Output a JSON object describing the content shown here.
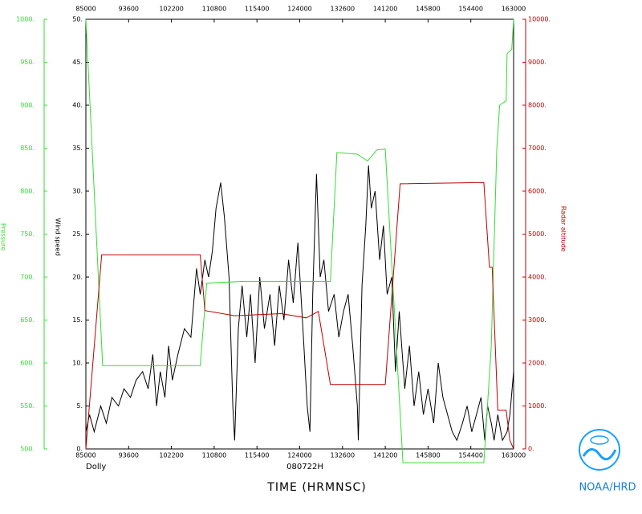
{
  "chart_data": {
    "type": "line",
    "title": "TIME (HRMNSC)",
    "storm": "Dolly",
    "flight": "080722H",
    "credit": "NOAA/HRD",
    "ylabel": "Wind speed",
    "y2label": "Radar altitude",
    "y3label": "Pressure",
    "xlim": [
      530,
      990
    ],
    "xticks": [
      {
        "value": 530,
        "label": "85000"
      },
      {
        "value": 576,
        "label": "93600"
      },
      {
        "value": 622,
        "label": "102200"
      },
      {
        "value": 668,
        "label": "110800"
      },
      {
        "value": 714,
        "label": "115400"
      },
      {
        "value": 760,
        "label": "124000"
      },
      {
        "value": 806,
        "label": "132600"
      },
      {
        "value": 852,
        "label": "141200"
      },
      {
        "value": 898,
        "label": "145800"
      },
      {
        "value": 944,
        "label": "154400"
      },
      {
        "value": 990,
        "label": "163000"
      }
    ],
    "ylim": [
      0,
      50
    ],
    "yticks": [
      {
        "value": 0,
        "label": "0."
      },
      {
        "value": 5,
        "label": "5."
      },
      {
        "value": 10,
        "label": "10."
      },
      {
        "value": 15,
        "label": "15."
      },
      {
        "value": 20,
        "label": "20."
      },
      {
        "value": 25,
        "label": "25."
      },
      {
        "value": 30,
        "label": "30."
      },
      {
        "value": 35,
        "label": "35."
      },
      {
        "value": 40,
        "label": "40."
      },
      {
        "value": 45,
        "label": "45."
      },
      {
        "value": 50,
        "label": "50."
      }
    ],
    "y2lim": [
      0,
      10000
    ],
    "y2ticks": [
      {
        "value": 0,
        "label": "0."
      },
      {
        "value": 1000,
        "label": "1000."
      },
      {
        "value": 2000,
        "label": "2000."
      },
      {
        "value": 3000,
        "label": "3000."
      },
      {
        "value": 4000,
        "label": "4000."
      },
      {
        "value": 5000,
        "label": "5000."
      },
      {
        "value": 6000,
        "label": "6000."
      },
      {
        "value": 7000,
        "label": "7000."
      },
      {
        "value": 8000,
        "label": "8000."
      },
      {
        "value": 9000,
        "label": "9000."
      },
      {
        "value": 10000,
        "label": "10000."
      }
    ],
    "y3lim": [
      500,
      1000
    ],
    "y3ticks": [
      {
        "value": 500,
        "label": "500."
      },
      {
        "value": 550,
        "label": "550."
      },
      {
        "value": 600,
        "label": "600."
      },
      {
        "value": 650,
        "label": "650."
      },
      {
        "value": 700,
        "label": "700."
      },
      {
        "value": 750,
        "label": "750."
      },
      {
        "value": 800,
        "label": "800."
      },
      {
        "value": 850,
        "label": "850."
      },
      {
        "value": 900,
        "label": "900."
      },
      {
        "value": 950,
        "label": "950."
      },
      {
        "value": 1000,
        "label": "1000."
      }
    ],
    "y3color": "#33dd33",
    "y2color": "#bb0000",
    "series": [
      {
        "axis": "y",
        "color": "#000000",
        "x": [
          530,
          534,
          539,
          546,
          552,
          558,
          565,
          571,
          578,
          584,
          591,
          597,
          602,
          606,
          610,
          615,
          619,
          623,
          629,
          636,
          643,
          649,
          653,
          658,
          662,
          666,
          670,
          675,
          679,
          684,
          688,
          690,
          694,
          698,
          703,
          707,
          712,
          717,
          722,
          728,
          733,
          738,
          743,
          748,
          753,
          758,
          764,
          768,
          771,
          774,
          778,
          782,
          786,
          791,
          797,
          802,
          807,
          812,
          817,
          822,
          823,
          827,
          831,
          834,
          837,
          841,
          846,
          850,
          854,
          859,
          863,
          867,
          873,
          878,
          883,
          888,
          893,
          898,
          904,
          909,
          914,
          919,
          924,
          929,
          935,
          940,
          945,
          950,
          955,
          959,
          962,
          966,
          969,
          973,
          978,
          983,
          986,
          990
        ],
        "values": [
          2,
          4,
          2,
          5,
          3,
          6,
          5,
          7,
          6,
          8,
          9,
          7,
          11,
          5,
          9,
          6,
          12,
          8,
          11,
          14,
          13,
          21,
          18,
          22,
          20,
          23,
          28,
          31,
          27,
          20,
          5,
          1,
          14,
          19,
          13,
          18,
          10,
          20,
          14,
          18,
          12,
          19,
          15,
          22,
          17,
          24,
          13,
          5,
          2,
          18,
          32,
          20,
          22,
          16,
          18,
          13,
          16,
          18,
          12,
          5,
          1,
          19,
          26,
          33,
          28,
          30,
          22,
          26,
          18,
          20,
          9,
          16,
          7,
          12,
          5,
          9,
          4,
          7,
          3,
          10,
          6,
          4,
          2,
          1,
          3,
          5,
          2,
          4,
          6,
          1,
          5,
          3,
          1,
          4,
          1,
          2,
          4,
          9
        ]
      },
      {
        "axis": "y3",
        "color": "#33dd33",
        "x": [
          530,
          548,
          653,
          660,
          700,
          793,
          800,
          822,
          833,
          843,
          852,
          871,
          958,
          966,
          968,
          972,
          975,
          982,
          983,
          988,
          990
        ],
        "values": [
          1000,
          597,
          597,
          693,
          695,
          695,
          845,
          843,
          835,
          848,
          849,
          484,
          484,
          620,
          700,
          850,
          900,
          905,
          960,
          965,
          1000
        ]
      },
      {
        "axis": "y2",
        "color": "#bb0000",
        "x": [
          530,
          547,
          653,
          658,
          690,
          740,
          767,
          780,
          793,
          852,
          868,
          958,
          964,
          967,
          973,
          982,
          986,
          990
        ],
        "values": [
          0,
          4520,
          4520,
          3220,
          3100,
          3150,
          3050,
          3200,
          1500,
          1500,
          6170,
          6200,
          4230,
          4230,
          900,
          900,
          200,
          0
        ]
      }
    ]
  }
}
